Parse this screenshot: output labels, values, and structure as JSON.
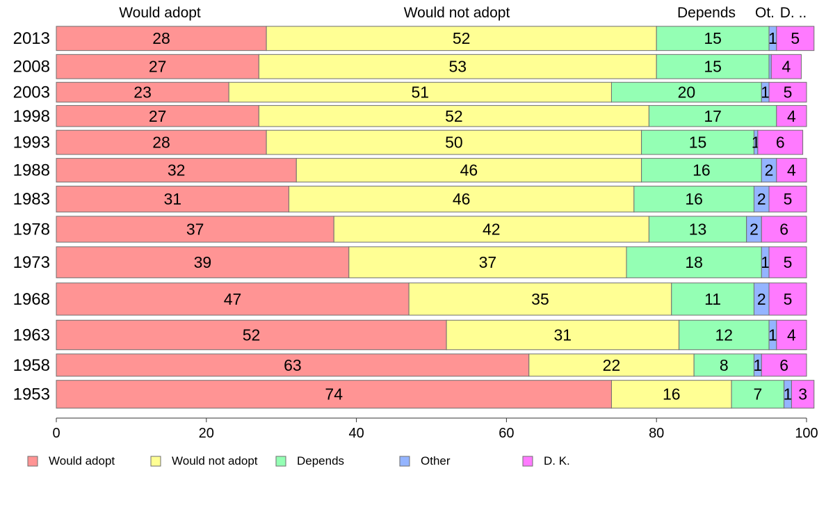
{
  "chart_data": {
    "type": "bar",
    "orientation": "horizontal",
    "stacked": true,
    "categories": [
      "2013",
      "2008",
      "2003",
      "1998",
      "1993",
      "1988",
      "1983",
      "1978",
      "1973",
      "1968",
      "1963",
      "1958",
      "1953"
    ],
    "series": [
      {
        "name": "Would adopt",
        "color": "#ff9494",
        "values": [
          28,
          27,
          23,
          27,
          28,
          32,
          31,
          37,
          39,
          47,
          52,
          63,
          74
        ]
      },
      {
        "name": "Would not adopt",
        "color": "#ffff94",
        "values": [
          52,
          53,
          51,
          52,
          50,
          46,
          46,
          42,
          37,
          35,
          31,
          22,
          16
        ]
      },
      {
        "name": "Depends",
        "color": "#94ffb4",
        "values": [
          15,
          15,
          20,
          17,
          15,
          16,
          16,
          13,
          18,
          11,
          12,
          8,
          7
        ]
      },
      {
        "name": "Other",
        "color": "#94b4ff",
        "values": [
          1,
          0.3,
          1,
          0,
          0.5,
          2,
          2,
          2,
          1,
          2,
          1,
          1,
          1
        ]
      },
      {
        "name": "D. K.",
        "color": "#ff7aff",
        "values": [
          5,
          4,
          5,
          4,
          6,
          4,
          5,
          6,
          5,
          5,
          4,
          6,
          3
        ]
      }
    ],
    "data_labels": [
      [
        "28",
        "52",
        "15",
        "1",
        "5"
      ],
      [
        "27",
        "53",
        "15",
        "",
        "4"
      ],
      [
        "23",
        "51",
        "20",
        "1",
        "5"
      ],
      [
        "27",
        "52",
        "17",
        "",
        "4"
      ],
      [
        "28",
        "50",
        "15",
        "1",
        "6"
      ],
      [
        "32",
        "46",
        "16",
        "2",
        "4"
      ],
      [
        "31",
        "46",
        "16",
        "2",
        "5"
      ],
      [
        "37",
        "42",
        "13",
        "2",
        "6"
      ],
      [
        "39",
        "37",
        "18",
        "1",
        "5"
      ],
      [
        "47",
        "35",
        "11",
        "2",
        "5"
      ],
      [
        "52",
        "31",
        "12",
        "1",
        "4"
      ],
      [
        "63",
        "22",
        "8",
        "1",
        "6"
      ],
      [
        "74",
        "16",
        "7",
        "1",
        "3"
      ]
    ],
    "row_weights": [
      1,
      1,
      0.82,
      0.87,
      1,
      0.98,
      1.07,
      1.07,
      1.28,
      1.33,
      1.22,
      0.92,
      1.15
    ],
    "top_labels": [
      "Would adopt",
      "Would not adopt",
      "Depends",
      "Ot.",
      "D. .."
    ],
    "top_label_centers": [
      14,
      27.5,
      44.5,
      53,
      100
    ],
    "top_labels_explicit": [
      {
        "text": "Would adopt",
        "x": 14
      },
      {
        "text": "Would not adopt",
        "x": 53.5
      },
      {
        "text": "Depends",
        "x": 87.5
      },
      {
        "text": "Ot.",
        "x": 94.5
      },
      {
        "text": "D. ..",
        "x": 98.2
      }
    ],
    "xlim": [
      0,
      100
    ],
    "xticks": [
      0,
      20,
      40,
      60,
      80,
      100
    ],
    "title": "",
    "xlabel": "",
    "ylabel": "",
    "grid": false,
    "legend_position": "bottom"
  }
}
